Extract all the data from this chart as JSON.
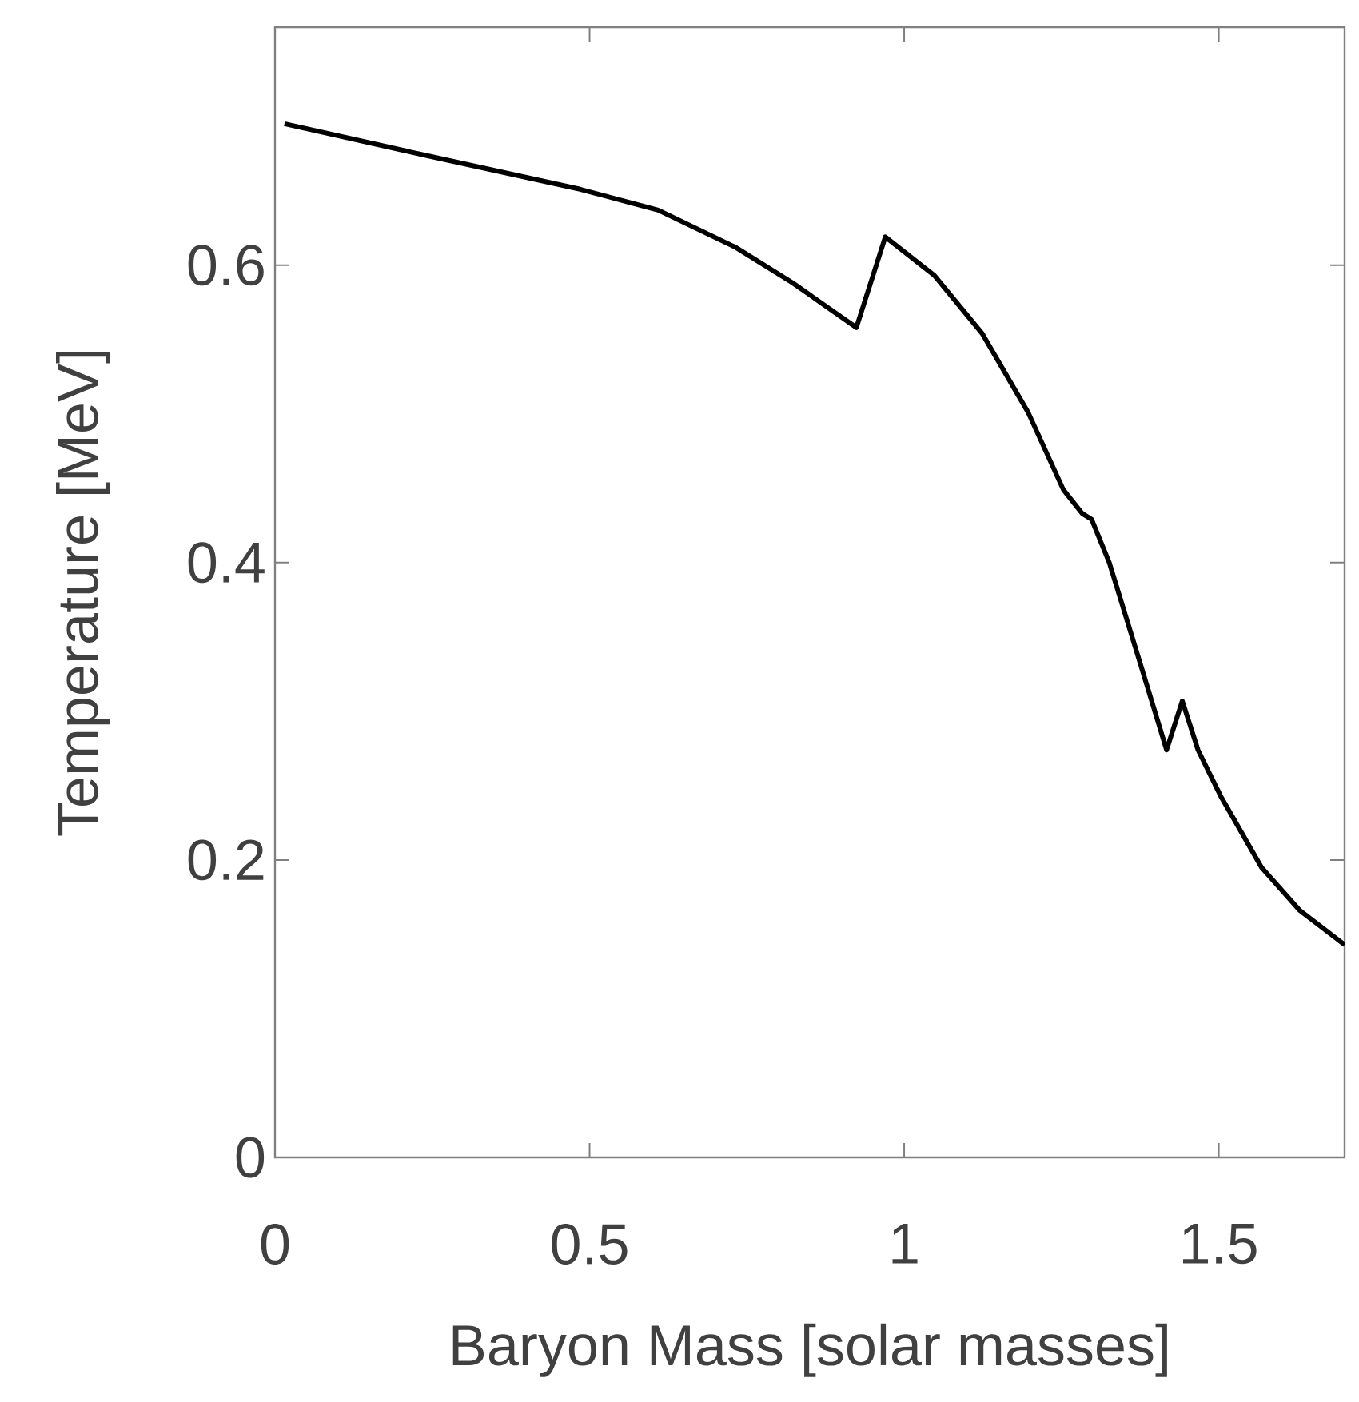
{
  "chart_data": {
    "type": "line",
    "xlabel": "Baryon Mass [solar masses]",
    "ylabel": "Temperature [MeV]",
    "xlim": [
      0,
      1.7
    ],
    "ylim": [
      0,
      0.76
    ],
    "xticks": [
      0,
      0.5,
      1,
      1.5
    ],
    "yticks": [
      0,
      0.2,
      0.4,
      0.6
    ],
    "grid": false,
    "marker": "none",
    "line_style": "solid",
    "series": [
      {
        "color": "#000000",
        "x": [
          0.015,
          0.237,
          0.485,
          0.609,
          0.732,
          0.823,
          0.924,
          0.97,
          1.048,
          1.124,
          1.197,
          1.253,
          1.283,
          1.298,
          1.326,
          1.376,
          1.417,
          1.442,
          1.467,
          1.503,
          1.568,
          1.629,
          1.7
        ],
        "values": [
          0.695,
          0.674,
          0.651,
          0.637,
          0.612,
          0.588,
          0.558,
          0.619,
          0.593,
          0.554,
          0.501,
          0.449,
          0.433,
          0.429,
          0.4,
          0.331,
          0.274,
          0.307,
          0.274,
          0.243,
          0.195,
          0.166,
          0.143
        ]
      }
    ]
  }
}
